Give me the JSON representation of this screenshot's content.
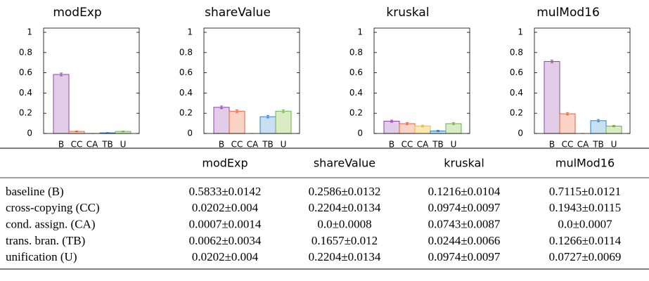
{
  "chart_data": [
    {
      "type": "bar",
      "title": "modExp",
      "categories": [
        "B",
        "CC",
        "CA",
        "TB",
        "U"
      ],
      "values": [
        0.5833,
        0.0202,
        0.0007,
        0.0062,
        0.0202
      ],
      "errors": [
        0.0142,
        0.004,
        0.0014,
        0.0034,
        0.004
      ],
      "colors": [
        "#e2cde9",
        "#fbd3c4",
        "#fde8b3",
        "#c9e0f4",
        "#d9ecc4"
      ],
      "edge_colors": [
        "#8e44a8",
        "#e8613d",
        "#f2b53c",
        "#2b82d3",
        "#6bb34b"
      ],
      "ylim": [
        0,
        1
      ],
      "yticks": [
        0,
        0.2,
        0.4,
        0.6,
        0.8,
        1
      ]
    },
    {
      "type": "bar",
      "title": "shareValue",
      "categories": [
        "B",
        "CC",
        "CA",
        "TB",
        "U"
      ],
      "values": [
        0.2586,
        0.2204,
        0.0,
        0.1657,
        0.2204
      ],
      "errors": [
        0.0132,
        0.0134,
        0.0008,
        0.012,
        0.0134
      ],
      "colors": [
        "#e2cde9",
        "#fbd3c4",
        "#fde8b3",
        "#c9e0f4",
        "#d9ecc4"
      ],
      "edge_colors": [
        "#8e44a8",
        "#e8613d",
        "#f2b53c",
        "#2b82d3",
        "#6bb34b"
      ],
      "ylim": [
        0,
        1
      ],
      "yticks": [
        0,
        0.2,
        0.4,
        0.6,
        0.8,
        1
      ]
    },
    {
      "type": "bar",
      "title": "kruskal",
      "categories": [
        "B",
        "CC",
        "CA",
        "TB",
        "U"
      ],
      "values": [
        0.1216,
        0.0974,
        0.0743,
        0.0244,
        0.0974
      ],
      "errors": [
        0.0104,
        0.0097,
        0.0087,
        0.0066,
        0.0097
      ],
      "colors": [
        "#e2cde9",
        "#fbd3c4",
        "#fde8b3",
        "#c9e0f4",
        "#d9ecc4"
      ],
      "edge_colors": [
        "#8e44a8",
        "#e8613d",
        "#f2b53c",
        "#2b82d3",
        "#6bb34b"
      ],
      "ylim": [
        0,
        1
      ],
      "yticks": [
        0,
        0.2,
        0.4,
        0.6,
        0.8,
        1
      ]
    },
    {
      "type": "bar",
      "title": "mulMod16",
      "categories": [
        "B",
        "CC",
        "CA",
        "TB",
        "U"
      ],
      "values": [
        0.7115,
        0.1943,
        0.0,
        0.1266,
        0.0727
      ],
      "errors": [
        0.0121,
        0.0115,
        0.0007,
        0.0114,
        0.0069
      ],
      "colors": [
        "#e2cde9",
        "#fbd3c4",
        "#fde8b3",
        "#c9e0f4",
        "#d9ecc4"
      ],
      "edge_colors": [
        "#8e44a8",
        "#e8613d",
        "#f2b53c",
        "#2b82d3",
        "#6bb34b"
      ],
      "ylim": [
        0,
        1
      ],
      "yticks": [
        0,
        0.2,
        0.4,
        0.6,
        0.8,
        1
      ]
    }
  ],
  "table": {
    "columns": [
      "modExp",
      "shareValue",
      "kruskal",
      "mulMod16"
    ],
    "rows": [
      {
        "label": "baseline (B)",
        "cells": [
          "0.5833±0.0142",
          "0.2586±0.0132",
          "0.1216±0.0104",
          "0.7115±0.0121"
        ]
      },
      {
        "label": "cross-copying (CC)",
        "cells": [
          "0.0202±0.004",
          "0.2204±0.0134",
          "0.0974±0.0097",
          "0.1943±0.0115"
        ]
      },
      {
        "label": "cond. assign. (CA)",
        "cells": [
          "0.0007±0.0014",
          "0.0±0.0008",
          "0.0743±0.0087",
          "0.0±0.0007"
        ]
      },
      {
        "label": "trans. bran. (TB)",
        "cells": [
          "0.0062±0.0034",
          "0.1657±0.012",
          "0.0244±0.0066",
          "0.1266±0.0114"
        ]
      },
      {
        "label": "unification (U)",
        "cells": [
          "0.0202±0.004",
          "0.2204±0.0134",
          "0.0974±0.0097",
          "0.0727±0.0069"
        ]
      }
    ]
  }
}
